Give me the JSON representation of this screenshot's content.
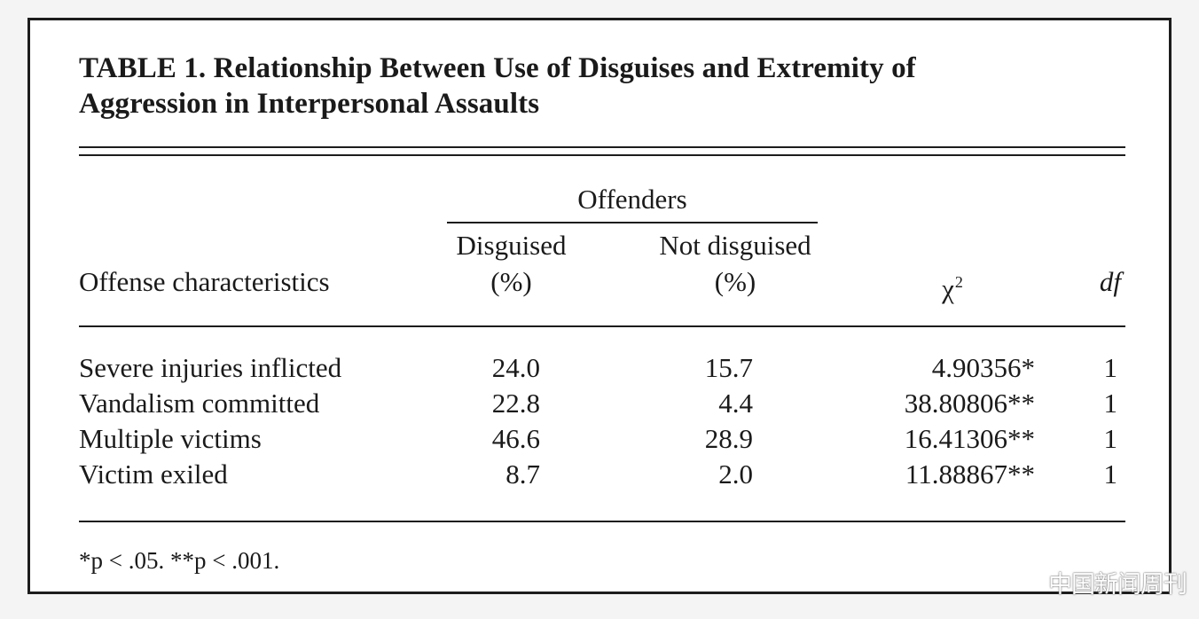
{
  "table": {
    "title_line1": "TABLE 1. Relationship Between Use of Disguises and Extremity of",
    "title_line2": "Aggression in Interpersonal Assaults",
    "group_header": "Offenders",
    "col_disguised_line1": "Disguised",
    "col_disguised_line2": "(%)",
    "col_not_disguised_line1": "Not disguised",
    "col_not_disguised_line2": "(%)",
    "col_characteristics": "Offense characteristics",
    "col_chi_symbol": "χ",
    "col_chi_superscript": "2",
    "col_df": "df",
    "rows": [
      {
        "label": "Severe injuries inflicted",
        "disguised": "24.0",
        "not_disguised": "15.7",
        "chi2": "4.90356*",
        "df": "1"
      },
      {
        "label": "Vandalism committed",
        "disguised": "22.8",
        "not_disguised": "4.4",
        "chi2": "38.80806**",
        "df": "1"
      },
      {
        "label": "Multiple victims",
        "disguised": "46.6",
        "not_disguised": "28.9",
        "chi2": "16.41306**",
        "df": "1"
      },
      {
        "label": "Victim exiled",
        "disguised": "8.7",
        "not_disguised": "2.0",
        "chi2": "11.88867**",
        "df": "1"
      }
    ],
    "footnote": "*p < .05. **p < .001."
  },
  "watermark": "中国新闻周刊"
}
